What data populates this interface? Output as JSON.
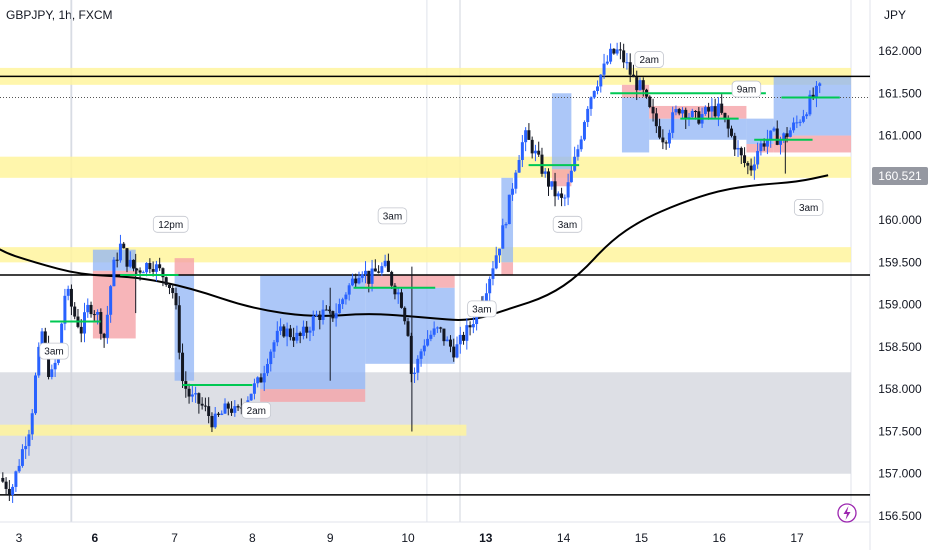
{
  "header": {
    "symbol": "GBPJPY, 1h, FXCM",
    "currency": "JPY"
  },
  "last_price_label": "160.521",
  "colors": {
    "candle_up": "#2962ff",
    "candle_down": "#131722",
    "ma_line": "#000000",
    "zone_yellow": "#fff59d",
    "zone_gray": "#d1d4dc",
    "buy_box": "#90b4f5",
    "sell_box": "#f5a3a8",
    "level_green": "#00c853",
    "hline": "#000000",
    "last_price_bg": "#9598a1"
  },
  "icons": {
    "lightning": "lightning-icon"
  },
  "chart_data": {
    "type": "candlestick",
    "title": "GBPJPY, 1h, FXCM",
    "ylabel": "JPY",
    "ylim": [
      156.4,
      162.3
    ],
    "y_ticks": [
      "162.000",
      "161.500",
      "161.000",
      "160.500",
      "160.000",
      "159.500",
      "159.000",
      "158.500",
      "158.000",
      "157.500",
      "157.000",
      "156.500"
    ],
    "y_tick_values": [
      162.0,
      161.5,
      161.0,
      160.5,
      160.0,
      159.5,
      159.0,
      158.5,
      158.0,
      157.5,
      157.0,
      156.5
    ],
    "x_ticks": [
      {
        "label": "3",
        "bold": false,
        "t": 0.0
      },
      {
        "label": "6",
        "bold": true,
        "t": 1.0
      },
      {
        "label": "7",
        "bold": false,
        "t": 2.0
      },
      {
        "label": "8",
        "bold": false,
        "t": 3.0
      },
      {
        "label": "9",
        "bold": false,
        "t": 4.0
      },
      {
        "label": "10",
        "bold": false,
        "t": 5.0
      },
      {
        "label": "13",
        "bold": true,
        "t": 6.0
      },
      {
        "label": "14",
        "bold": false,
        "t": 7.0
      },
      {
        "label": "15",
        "bold": false,
        "t": 8.0
      },
      {
        "label": "16",
        "bold": false,
        "t": 9.0
      },
      {
        "label": "17",
        "bold": false,
        "t": 10.0
      }
    ],
    "close_path": [
      [
        -0.25,
        156.95
      ],
      [
        -0.1,
        156.8
      ],
      [
        0.05,
        157.3
      ],
      [
        0.15,
        157.6
      ],
      [
        0.22,
        158.2
      ],
      [
        0.3,
        158.7
      ],
      [
        0.4,
        158.1
      ],
      [
        0.5,
        158.4
      ],
      [
        0.6,
        159.2
      ],
      [
        0.7,
        158.9
      ],
      [
        0.8,
        158.7
      ],
      [
        0.9,
        159.0
      ],
      [
        1.0,
        158.9
      ],
      [
        1.1,
        158.6
      ],
      [
        1.2,
        159.4
      ],
      [
        1.3,
        159.7
      ],
      [
        1.4,
        159.5
      ],
      [
        1.5,
        159.4
      ],
      [
        1.6,
        159.45
      ],
      [
        1.7,
        159.5
      ],
      [
        1.8,
        159.4
      ],
      [
        1.9,
        159.3
      ],
      [
        2.0,
        159.1
      ],
      [
        2.05,
        158.6
      ],
      [
        2.1,
        158.1
      ],
      [
        2.2,
        157.9
      ],
      [
        2.3,
        157.85
      ],
      [
        2.4,
        157.75
      ],
      [
        2.5,
        157.6
      ],
      [
        2.6,
        157.7
      ],
      [
        2.7,
        157.8
      ],
      [
        2.8,
        157.7
      ],
      [
        2.9,
        157.85
      ],
      [
        3.0,
        158.0
      ],
      [
        3.1,
        158.1
      ],
      [
        3.2,
        158.4
      ],
      [
        3.3,
        158.6
      ],
      [
        3.4,
        158.7
      ],
      [
        3.5,
        158.65
      ],
      [
        3.6,
        158.6
      ],
      [
        3.7,
        158.7
      ],
      [
        3.8,
        158.85
      ],
      [
        3.9,
        158.9
      ],
      [
        4.0,
        158.85
      ],
      [
        4.1,
        158.95
      ],
      [
        4.2,
        159.15
      ],
      [
        4.3,
        159.3
      ],
      [
        4.4,
        159.45
      ],
      [
        4.5,
        159.3
      ],
      [
        4.6,
        159.4
      ],
      [
        4.7,
        159.45
      ],
      [
        4.8,
        159.25
      ],
      [
        4.9,
        159.1
      ],
      [
        5.0,
        158.7
      ],
      [
        5.05,
        158.1
      ],
      [
        5.1,
        158.25
      ],
      [
        5.2,
        158.55
      ],
      [
        5.3,
        158.65
      ],
      [
        5.4,
        158.7
      ],
      [
        5.5,
        158.55
      ],
      [
        5.6,
        158.45
      ],
      [
        5.7,
        158.6
      ],
      [
        5.8,
        158.75
      ],
      [
        5.9,
        158.95
      ],
      [
        6.0,
        159.2
      ],
      [
        6.1,
        159.5
      ],
      [
        6.2,
        159.8
      ],
      [
        6.3,
        160.2
      ],
      [
        6.4,
        160.7
      ],
      [
        6.5,
        161.0
      ],
      [
        6.6,
        160.85
      ],
      [
        6.7,
        160.65
      ],
      [
        6.8,
        160.45
      ],
      [
        6.9,
        160.3
      ],
      [
        7.0,
        160.2
      ],
      [
        7.1,
        160.55
      ],
      [
        7.2,
        160.9
      ],
      [
        7.3,
        161.35
      ],
      [
        7.4,
        161.6
      ],
      [
        7.5,
        161.75
      ],
      [
        7.6,
        161.95
      ],
      [
        7.7,
        162.0
      ],
      [
        7.8,
        161.85
      ],
      [
        7.9,
        161.65
      ],
      [
        8.0,
        161.55
      ],
      [
        8.1,
        161.3
      ],
      [
        8.2,
        161.1
      ],
      [
        8.3,
        160.95
      ],
      [
        8.4,
        161.2
      ],
      [
        8.5,
        161.35
      ],
      [
        8.6,
        161.25
      ],
      [
        8.7,
        161.2
      ],
      [
        8.8,
        161.25
      ],
      [
        8.9,
        161.3
      ],
      [
        9.0,
        161.3
      ],
      [
        9.1,
        161.1
      ],
      [
        9.2,
        160.9
      ],
      [
        9.3,
        160.7
      ],
      [
        9.4,
        160.6
      ],
      [
        9.5,
        160.85
      ],
      [
        9.6,
        160.95
      ],
      [
        9.7,
        161.0
      ],
      [
        9.8,
        160.95
      ],
      [
        9.9,
        161.05
      ],
      [
        10.0,
        161.15
      ],
      [
        10.1,
        161.3
      ],
      [
        10.2,
        161.45
      ],
      [
        10.3,
        161.55
      ]
    ],
    "moving_average": [
      [
        -0.8,
        160.05
      ],
      [
        -0.3,
        159.65
      ],
      [
        0.2,
        159.5
      ],
      [
        0.8,
        159.35
      ],
      [
        1.5,
        159.33
      ],
      [
        2.2,
        159.2
      ],
      [
        3.0,
        158.95
      ],
      [
        3.8,
        158.85
      ],
      [
        4.5,
        158.9
      ],
      [
        5.2,
        158.85
      ],
      [
        5.8,
        158.8
      ],
      [
        6.3,
        158.95
      ],
      [
        6.8,
        159.1
      ],
      [
        7.2,
        159.35
      ],
      [
        7.6,
        159.75
      ],
      [
        8.0,
        160.0
      ],
      [
        8.5,
        160.2
      ],
      [
        9.0,
        160.35
      ],
      [
        9.5,
        160.42
      ],
      [
        10.0,
        160.45
      ],
      [
        10.4,
        160.53
      ]
    ],
    "yellow_zones": [
      {
        "t0": -1.0,
        "t1": 10.66,
        "y0": 161.6,
        "y1": 161.8
      },
      {
        "t0": -1.0,
        "t1": 10.66,
        "y0": 160.5,
        "y1": 160.75
      },
      {
        "t0": -1.0,
        "t1": 10.66,
        "y0": 159.5,
        "y1": 159.68
      },
      {
        "t0": -1.0,
        "t1": 5.75,
        "y0": 157.45,
        "y1": 157.58
      }
    ],
    "gray_zone": {
      "t0": -1.0,
      "t1": 10.66,
      "y0": 157.0,
      "y1": 158.2
    },
    "horizontal_lines": [
      161.7,
      159.35,
      156.75
    ],
    "dotted_line": 161.45,
    "trade_boxes": [
      {
        "t0": 0.95,
        "t1": 1.5,
        "entry": 159.4,
        "target": 159.65,
        "stop": 158.6,
        "dir": "short_blue_above"
      },
      {
        "t0": 2.0,
        "t1": 2.25,
        "entry": 159.35,
        "target": 158.1,
        "stop": 159.55,
        "dir": "short"
      },
      {
        "t0": 3.1,
        "t1": 4.45,
        "entry": 158.0,
        "target": 159.35,
        "stop": 157.85,
        "dir": "long"
      },
      {
        "t0": 4.45,
        "t1": 5.6,
        "entry": 159.2,
        "target": 158.3,
        "stop": 159.35,
        "dir": "short"
      },
      {
        "t0": 6.2,
        "t1": 6.35,
        "entry": 159.5,
        "target": 160.5,
        "stop": 159.35,
        "dir": "long"
      },
      {
        "t0": 6.85,
        "t1": 7.1,
        "entry": 160.6,
        "target": 161.5,
        "stop": 160.4,
        "dir": "long"
      },
      {
        "t0": 7.75,
        "t1": 8.1,
        "entry": 161.45,
        "target": 160.8,
        "stop": 161.6,
        "dir": "short"
      },
      {
        "t0": 8.1,
        "t1": 9.35,
        "entry": 161.2,
        "target": 160.95,
        "stop": 161.35,
        "dir": "short_small"
      },
      {
        "t0": 9.35,
        "t1": 9.7,
        "entry": 160.9,
        "target": 161.2,
        "stop": 160.8,
        "dir": "long_small"
      },
      {
        "t0": 9.7,
        "t1": 10.66,
        "entry": 161.0,
        "target": 161.7,
        "stop": 160.8,
        "dir": "long"
      }
    ],
    "green_levels": [
      {
        "t0": 0.4,
        "t1": 1.05,
        "y": 158.8
      },
      {
        "t0": 1.3,
        "t1": 2.05,
        "y": 159.35
      },
      {
        "t0": 2.1,
        "t1": 3.0,
        "y": 158.05
      },
      {
        "t0": 4.3,
        "t1": 5.35,
        "y": 159.2
      },
      {
        "t0": 6.55,
        "t1": 7.2,
        "y": 160.65
      },
      {
        "t0": 7.6,
        "t1": 9.6,
        "y": 161.5
      },
      {
        "t0": 8.5,
        "t1": 9.25,
        "y": 161.2
      },
      {
        "t0": 9.45,
        "t1": 10.2,
        "y": 160.95
      },
      {
        "t0": 9.8,
        "t1": 10.55,
        "y": 161.45
      }
    ],
    "annotations": [
      {
        "text": "3am",
        "t": 0.45,
        "y": 158.45
      },
      {
        "text": "12pm",
        "t": 1.95,
        "y": 159.95
      },
      {
        "text": "2am",
        "t": 3.05,
        "y": 157.75
      },
      {
        "text": "3am",
        "t": 4.8,
        "y": 160.05
      },
      {
        "text": "3am",
        "t": 5.95,
        "y": 158.95
      },
      {
        "text": "3am",
        "t": 7.05,
        "y": 159.95
      },
      {
        "text": "2am",
        "t": 8.1,
        "y": 161.9
      },
      {
        "text": "9am",
        "t": 9.35,
        "y": 161.55
      },
      {
        "text": "3am",
        "t": 10.15,
        "y": 160.15
      }
    ]
  }
}
